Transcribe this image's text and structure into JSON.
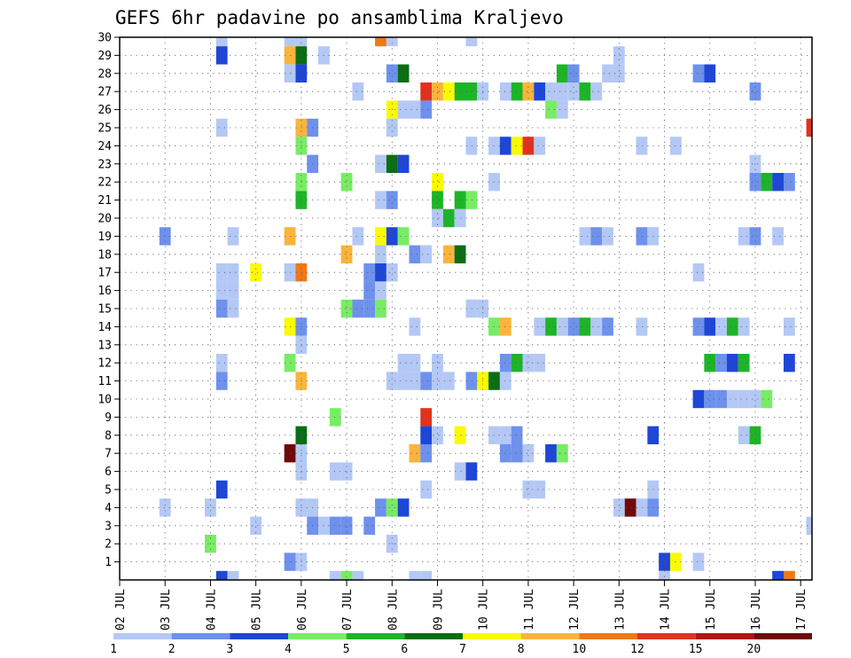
{
  "chart_data": {
    "type": "heatmap",
    "title": "GEFS 6hr padavine po ansamblima Kraljevo",
    "xlabel": "",
    "ylabel": "",
    "x_range": [
      0,
      30.5
    ],
    "y_range": [
      0,
      30
    ],
    "x_ticks": [
      {
        "label": "02 JUL",
        "x": 0
      },
      {
        "label": "03 JUL",
        "x": 2
      },
      {
        "label": "04 JUL",
        "x": 4
      },
      {
        "label": "05 JUL",
        "x": 6
      },
      {
        "label": "06 JUL",
        "x": 8
      },
      {
        "label": "07 JUL",
        "x": 10
      },
      {
        "label": "08 JUL",
        "x": 12
      },
      {
        "label": "09 JUL",
        "x": 14
      },
      {
        "label": "10 JUL",
        "x": 16
      },
      {
        "label": "11 JUL",
        "x": 18
      },
      {
        "label": "12 JUL",
        "x": 20
      },
      {
        "label": "13 JUL",
        "x": 22
      },
      {
        "label": "14 JUL",
        "x": 24
      },
      {
        "label": "15 JUL",
        "x": 26
      },
      {
        "label": "16 JUL",
        "x": 28
      },
      {
        "label": "17 JUL",
        "x": 30
      }
    ],
    "y_ticks": [
      "1",
      "2",
      "3",
      "4",
      "5",
      "6",
      "7",
      "8",
      "9",
      "10",
      "11",
      "12",
      "13",
      "14",
      "15",
      "16",
      "17",
      "18",
      "19",
      "20",
      "21",
      "22",
      "23",
      "24",
      "25",
      "26",
      "27",
      "28",
      "29",
      "30"
    ],
    "grid": true,
    "legend": "colorbar-bottom",
    "colorbar": {
      "labels": [
        "1",
        "2",
        "3",
        "4",
        "5",
        "6",
        "7",
        "8",
        "10",
        "12",
        "15",
        "20"
      ],
      "colors": [
        "#b4c8f5",
        "#6e91ec",
        "#1e46d7",
        "#78ec64",
        "#1eb428",
        "#0a6e14",
        "#fafa00",
        "#fab43c",
        "#f07814",
        "#e1321e",
        "#b41414",
        "#6e0a0a"
      ]
    },
    "cells": [
      {
        "x": 4.5,
        "y": 30,
        "c": 0
      },
      {
        "x": 7.5,
        "y": 30,
        "c": 0
      },
      {
        "x": 8,
        "y": 30,
        "c": 0
      },
      {
        "x": 11.5,
        "y": 30,
        "c": 8
      },
      {
        "x": 12,
        "y": 30,
        "c": 0
      },
      {
        "x": 15.5,
        "y": 30,
        "c": 0
      },
      {
        "x": 4.5,
        "y": 29,
        "c": 2
      },
      {
        "x": 7.5,
        "y": 29,
        "c": 7
      },
      {
        "x": 8,
        "y": 29,
        "c": 5
      },
      {
        "x": 9,
        "y": 29,
        "c": 0
      },
      {
        "x": 22,
        "y": 29,
        "c": 0
      },
      {
        "x": 7.5,
        "y": 28,
        "c": 0
      },
      {
        "x": 8,
        "y": 28,
        "c": 2
      },
      {
        "x": 12,
        "y": 28,
        "c": 1
      },
      {
        "x": 12.5,
        "y": 28,
        "c": 5
      },
      {
        "x": 19.5,
        "y": 28,
        "c": 4
      },
      {
        "x": 20,
        "y": 28,
        "c": 1
      },
      {
        "x": 21.5,
        "y": 28,
        "c": 0
      },
      {
        "x": 22,
        "y": 28,
        "c": 0
      },
      {
        "x": 25.5,
        "y": 28,
        "c": 1
      },
      {
        "x": 26,
        "y": 28,
        "c": 2
      },
      {
        "x": 10.5,
        "y": 27,
        "c": 0
      },
      {
        "x": 13.5,
        "y": 27,
        "c": 9
      },
      {
        "x": 14,
        "y": 27,
        "c": 7
      },
      {
        "x": 14.5,
        "y": 27,
        "c": 6
      },
      {
        "x": 15,
        "y": 27,
        "c": 4
      },
      {
        "x": 15.5,
        "y": 27,
        "c": 4
      },
      {
        "x": 16,
        "y": 27,
        "c": 0
      },
      {
        "x": 17,
        "y": 27,
        "c": 0
      },
      {
        "x": 17.5,
        "y": 27,
        "c": 4
      },
      {
        "x": 18,
        "y": 27,
        "c": 7
      },
      {
        "x": 18.5,
        "y": 27,
        "c": 2
      },
      {
        "x": 19,
        "y": 27,
        "c": 0
      },
      {
        "x": 19.5,
        "y": 27,
        "c": 0
      },
      {
        "x": 20,
        "y": 27,
        "c": 0
      },
      {
        "x": 20.5,
        "y": 27,
        "c": 4
      },
      {
        "x": 21,
        "y": 27,
        "c": 0
      },
      {
        "x": 28,
        "y": 27,
        "c": 1
      },
      {
        "x": 12,
        "y": 26,
        "c": 6
      },
      {
        "x": 12.5,
        "y": 26,
        "c": 0
      },
      {
        "x": 13,
        "y": 26,
        "c": 0
      },
      {
        "x": 13.5,
        "y": 26,
        "c": 1
      },
      {
        "x": 19,
        "y": 26,
        "c": 3
      },
      {
        "x": 19.5,
        "y": 26,
        "c": 0
      },
      {
        "x": 4.5,
        "y": 25,
        "c": 0
      },
      {
        "x": 8,
        "y": 25,
        "c": 7
      },
      {
        "x": 8.5,
        "y": 25,
        "c": 1
      },
      {
        "x": 12,
        "y": 25,
        "c": 0
      },
      {
        "x": 30.5,
        "y": 25,
        "c": 9
      },
      {
        "x": 8,
        "y": 24,
        "c": 3
      },
      {
        "x": 15.5,
        "y": 24,
        "c": 0
      },
      {
        "x": 16.5,
        "y": 24,
        "c": 0
      },
      {
        "x": 17,
        "y": 24,
        "c": 2
      },
      {
        "x": 17.5,
        "y": 24,
        "c": 6
      },
      {
        "x": 18,
        "y": 24,
        "c": 9
      },
      {
        "x": 18.5,
        "y": 24,
        "c": 0
      },
      {
        "x": 23,
        "y": 24,
        "c": 0
      },
      {
        "x": 24.5,
        "y": 24,
        "c": 0
      },
      {
        "x": 8.5,
        "y": 23,
        "c": 1
      },
      {
        "x": 11.5,
        "y": 23,
        "c": 0
      },
      {
        "x": 12,
        "y": 23,
        "c": 5
      },
      {
        "x": 12.5,
        "y": 23,
        "c": 2
      },
      {
        "x": 28,
        "y": 23,
        "c": 0
      },
      {
        "x": 8,
        "y": 22,
        "c": 3
      },
      {
        "x": 10,
        "y": 22,
        "c": 3
      },
      {
        "x": 14,
        "y": 22,
        "c": 6
      },
      {
        "x": 16.5,
        "y": 22,
        "c": 0
      },
      {
        "x": 28,
        "y": 22,
        "c": 1
      },
      {
        "x": 28.5,
        "y": 22,
        "c": 4
      },
      {
        "x": 29,
        "y": 22,
        "c": 2
      },
      {
        "x": 29.5,
        "y": 22,
        "c": 1
      },
      {
        "x": 8,
        "y": 21,
        "c": 4
      },
      {
        "x": 11.5,
        "y": 21,
        "c": 0
      },
      {
        "x": 12,
        "y": 21,
        "c": 1
      },
      {
        "x": 14,
        "y": 21,
        "c": 4
      },
      {
        "x": 15,
        "y": 21,
        "c": 4
      },
      {
        "x": 15.5,
        "y": 21,
        "c": 3
      },
      {
        "x": 14,
        "y": 20,
        "c": 0
      },
      {
        "x": 14.5,
        "y": 20,
        "c": 4
      },
      {
        "x": 15,
        "y": 20,
        "c": 0
      },
      {
        "x": 2,
        "y": 19,
        "c": 1
      },
      {
        "x": 5,
        "y": 19,
        "c": 0
      },
      {
        "x": 7.5,
        "y": 19,
        "c": 7
      },
      {
        "x": 10.5,
        "y": 19,
        "c": 0
      },
      {
        "x": 11.5,
        "y": 19,
        "c": 6
      },
      {
        "x": 12,
        "y": 19,
        "c": 2
      },
      {
        "x": 12.5,
        "y": 19,
        "c": 3
      },
      {
        "x": 20.5,
        "y": 19,
        "c": 0
      },
      {
        "x": 21,
        "y": 19,
        "c": 1
      },
      {
        "x": 21.5,
        "y": 19,
        "c": 0
      },
      {
        "x": 23,
        "y": 19,
        "c": 1
      },
      {
        "x": 23.5,
        "y": 19,
        "c": 0
      },
      {
        "x": 27.5,
        "y": 19,
        "c": 0
      },
      {
        "x": 28,
        "y": 19,
        "c": 1
      },
      {
        "x": 29,
        "y": 19,
        "c": 0
      },
      {
        "x": 10,
        "y": 18,
        "c": 7
      },
      {
        "x": 11.5,
        "y": 18,
        "c": 0
      },
      {
        "x": 13,
        "y": 18,
        "c": 1
      },
      {
        "x": 13.5,
        "y": 18,
        "c": 0
      },
      {
        "x": 14.5,
        "y": 18,
        "c": 7
      },
      {
        "x": 15,
        "y": 18,
        "c": 5
      },
      {
        "x": 4.5,
        "y": 17,
        "c": 0
      },
      {
        "x": 5,
        "y": 17,
        "c": 0
      },
      {
        "x": 6,
        "y": 17,
        "c": 6
      },
      {
        "x": 7.5,
        "y": 17,
        "c": 0
      },
      {
        "x": 8,
        "y": 17,
        "c": 8
      },
      {
        "x": 11,
        "y": 17,
        "c": 1
      },
      {
        "x": 11.5,
        "y": 17,
        "c": 2
      },
      {
        "x": 12,
        "y": 17,
        "c": 0
      },
      {
        "x": 25.5,
        "y": 17,
        "c": 0
      },
      {
        "x": 4.5,
        "y": 16,
        "c": 0
      },
      {
        "x": 5,
        "y": 16,
        "c": 0
      },
      {
        "x": 11,
        "y": 16,
        "c": 1
      },
      {
        "x": 11.5,
        "y": 16,
        "c": 0
      },
      {
        "x": 4.5,
        "y": 15,
        "c": 1
      },
      {
        "x": 5,
        "y": 15,
        "c": 0
      },
      {
        "x": 10,
        "y": 15,
        "c": 3
      },
      {
        "x": 10.5,
        "y": 15,
        "c": 1
      },
      {
        "x": 11,
        "y": 15,
        "c": 1
      },
      {
        "x": 11.5,
        "y": 15,
        "c": 3
      },
      {
        "x": 15.5,
        "y": 15,
        "c": 0
      },
      {
        "x": 16,
        "y": 15,
        "c": 0
      },
      {
        "x": 7.5,
        "y": 14,
        "c": 6
      },
      {
        "x": 8,
        "y": 14,
        "c": 1
      },
      {
        "x": 13,
        "y": 14,
        "c": 0
      },
      {
        "x": 16.5,
        "y": 14,
        "c": 3
      },
      {
        "x": 17,
        "y": 14,
        "c": 7
      },
      {
        "x": 18.5,
        "y": 14,
        "c": 0
      },
      {
        "x": 19,
        "y": 14,
        "c": 4
      },
      {
        "x": 19.5,
        "y": 14,
        "c": 0
      },
      {
        "x": 20,
        "y": 14,
        "c": 1
      },
      {
        "x": 20.5,
        "y": 14,
        "c": 4
      },
      {
        "x": 21,
        "y": 14,
        "c": 0
      },
      {
        "x": 21.5,
        "y": 14,
        "c": 1
      },
      {
        "x": 23,
        "y": 14,
        "c": 0
      },
      {
        "x": 25.5,
        "y": 14,
        "c": 1
      },
      {
        "x": 26,
        "y": 14,
        "c": 2
      },
      {
        "x": 26.5,
        "y": 14,
        "c": 0
      },
      {
        "x": 27,
        "y": 14,
        "c": 4
      },
      {
        "x": 27.5,
        "y": 14,
        "c": 0
      },
      {
        "x": 29.5,
        "y": 14,
        "c": 0
      },
      {
        "x": 8,
        "y": 13,
        "c": 0
      },
      {
        "x": 4.5,
        "y": 12,
        "c": 0
      },
      {
        "x": 7.5,
        "y": 12,
        "c": 3
      },
      {
        "x": 12.5,
        "y": 12,
        "c": 0
      },
      {
        "x": 13,
        "y": 12,
        "c": 0
      },
      {
        "x": 14,
        "y": 12,
        "c": 0
      },
      {
        "x": 17,
        "y": 12,
        "c": 1
      },
      {
        "x": 17.5,
        "y": 12,
        "c": 4
      },
      {
        "x": 18,
        "y": 12,
        "c": 0
      },
      {
        "x": 18.5,
        "y": 12,
        "c": 0
      },
      {
        "x": 26,
        "y": 12,
        "c": 4
      },
      {
        "x": 26.5,
        "y": 12,
        "c": 1
      },
      {
        "x": 27,
        "y": 12,
        "c": 2
      },
      {
        "x": 27.5,
        "y": 12,
        "c": 4
      },
      {
        "x": 29.5,
        "y": 12,
        "c": 2
      },
      {
        "x": 4.5,
        "y": 11,
        "c": 1
      },
      {
        "x": 8,
        "y": 11,
        "c": 7
      },
      {
        "x": 12,
        "y": 11,
        "c": 0
      },
      {
        "x": 12.5,
        "y": 11,
        "c": 0
      },
      {
        "x": 13,
        "y": 11,
        "c": 0
      },
      {
        "x": 13.5,
        "y": 11,
        "c": 1
      },
      {
        "x": 14,
        "y": 11,
        "c": 0
      },
      {
        "x": 14.5,
        "y": 11,
        "c": 0
      },
      {
        "x": 15.5,
        "y": 11,
        "c": 1
      },
      {
        "x": 16,
        "y": 11,
        "c": 6
      },
      {
        "x": 16.5,
        "y": 11,
        "c": 5
      },
      {
        "x": 17,
        "y": 11,
        "c": 0
      },
      {
        "x": 25.5,
        "y": 10,
        "c": 2
      },
      {
        "x": 26,
        "y": 10,
        "c": 1
      },
      {
        "x": 26.5,
        "y": 10,
        "c": 1
      },
      {
        "x": 27,
        "y": 10,
        "c": 0
      },
      {
        "x": 27.5,
        "y": 10,
        "c": 0
      },
      {
        "x": 28,
        "y": 10,
        "c": 0
      },
      {
        "x": 28.5,
        "y": 10,
        "c": 3
      },
      {
        "x": 9.5,
        "y": 9,
        "c": 3
      },
      {
        "x": 13.5,
        "y": 9,
        "c": 9
      },
      {
        "x": 8,
        "y": 8,
        "c": 5
      },
      {
        "x": 13.5,
        "y": 8,
        "c": 2
      },
      {
        "x": 14,
        "y": 8,
        "c": 0
      },
      {
        "x": 15,
        "y": 8,
        "c": 6
      },
      {
        "x": 16.5,
        "y": 8,
        "c": 0
      },
      {
        "x": 17,
        "y": 8,
        "c": 0
      },
      {
        "x": 17.5,
        "y": 8,
        "c": 1
      },
      {
        "x": 23.5,
        "y": 8,
        "c": 2
      },
      {
        "x": 27.5,
        "y": 8,
        "c": 0
      },
      {
        "x": 28,
        "y": 8,
        "c": 4
      },
      {
        "x": 7.5,
        "y": 7,
        "c": 11
      },
      {
        "x": 8,
        "y": 7,
        "c": 0
      },
      {
        "x": 13,
        "y": 7,
        "c": 7
      },
      {
        "x": 13.5,
        "y": 7,
        "c": 1
      },
      {
        "x": 17,
        "y": 7,
        "c": 1
      },
      {
        "x": 17.5,
        "y": 7,
        "c": 1
      },
      {
        "x": 18,
        "y": 7,
        "c": 0
      },
      {
        "x": 19,
        "y": 7,
        "c": 2
      },
      {
        "x": 19.5,
        "y": 7,
        "c": 3
      },
      {
        "x": 8,
        "y": 6,
        "c": 0
      },
      {
        "x": 9.5,
        "y": 6,
        "c": 0
      },
      {
        "x": 10,
        "y": 6,
        "c": 0
      },
      {
        "x": 15,
        "y": 6,
        "c": 0
      },
      {
        "x": 15.5,
        "y": 6,
        "c": 2
      },
      {
        "x": 4.5,
        "y": 5,
        "c": 2
      },
      {
        "x": 13.5,
        "y": 5,
        "c": 0
      },
      {
        "x": 18,
        "y": 5,
        "c": 0
      },
      {
        "x": 18.5,
        "y": 5,
        "c": 0
      },
      {
        "x": 23.5,
        "y": 5,
        "c": 0
      },
      {
        "x": 2,
        "y": 4,
        "c": 0
      },
      {
        "x": 4,
        "y": 4,
        "c": 0
      },
      {
        "x": 8,
        "y": 4,
        "c": 0
      },
      {
        "x": 8.5,
        "y": 4,
        "c": 0
      },
      {
        "x": 11.5,
        "y": 4,
        "c": 1
      },
      {
        "x": 12,
        "y": 4,
        "c": 3
      },
      {
        "x": 12.5,
        "y": 4,
        "c": 2
      },
      {
        "x": 22,
        "y": 4,
        "c": 0
      },
      {
        "x": 22.5,
        "y": 4,
        "c": 11
      },
      {
        "x": 23,
        "y": 4,
        "c": 0
      },
      {
        "x": 23.5,
        "y": 4,
        "c": 1
      },
      {
        "x": 6,
        "y": 3,
        "c": 0
      },
      {
        "x": 8.5,
        "y": 3,
        "c": 1
      },
      {
        "x": 9,
        "y": 3,
        "c": 0
      },
      {
        "x": 9.5,
        "y": 3,
        "c": 1
      },
      {
        "x": 10,
        "y": 3,
        "c": 1
      },
      {
        "x": 11,
        "y": 3,
        "c": 1
      },
      {
        "x": 30.5,
        "y": 3,
        "c": 0
      },
      {
        "x": 4,
        "y": 2,
        "c": 3
      },
      {
        "x": 12,
        "y": 2,
        "c": 0
      },
      {
        "x": 7.5,
        "y": 1,
        "c": 1
      },
      {
        "x": 8,
        "y": 1,
        "c": 0
      },
      {
        "x": 24,
        "y": 1,
        "c": 2
      },
      {
        "x": 24.5,
        "y": 1,
        "c": 6
      },
      {
        "x": 25.5,
        "y": 1,
        "c": 0
      },
      {
        "x": 4.5,
        "y": 0,
        "c": 2
      },
      {
        "x": 5,
        "y": 0,
        "c": 0
      },
      {
        "x": 9.5,
        "y": 0,
        "c": 0
      },
      {
        "x": 10,
        "y": 0,
        "c": 3
      },
      {
        "x": 10.5,
        "y": 0,
        "c": 0
      },
      {
        "x": 13,
        "y": 0,
        "c": 0
      },
      {
        "x": 13.5,
        "y": 0,
        "c": 0
      },
      {
        "x": 24,
        "y": 0,
        "c": 0
      },
      {
        "x": 29,
        "y": 0,
        "c": 2
      },
      {
        "x": 29.5,
        "y": 0,
        "c": 8
      }
    ]
  }
}
